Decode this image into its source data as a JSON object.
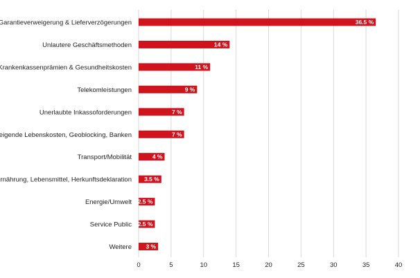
{
  "chart_data": {
    "type": "bar",
    "orientation": "horizontal",
    "categories": [
      "Garantieverweigerung & Lieferverzögerungen",
      "Unlautere Geschäftsmethoden",
      "Krankenkassenprämien & Gesundheitskosten",
      "Telekomleistungen",
      "Unerlaubte Inkassoforderungen",
      "Steigende Lebenskosten, Geoblocking, Banken",
      "Transport/Mobilität",
      "Ernährung, Lebensmittel, Herkunftsdeklaration",
      "Energie/Umwelt",
      "Service Public",
      "Weitere"
    ],
    "values": [
      36.5,
      14,
      11,
      9,
      7,
      7,
      4,
      3.5,
      2.5,
      2.5,
      3
    ],
    "data_labels": [
      "36.5 %",
      "14 %",
      "11 %",
      "9 %",
      "7 %",
      "7 %",
      "4 %",
      "3.5 %",
      "2.5 %",
      "2.5 %",
      "3 %"
    ],
    "xlim": [
      0,
      40
    ],
    "xticks": [
      0,
      5,
      10,
      15,
      20,
      25,
      30,
      35,
      40
    ],
    "xtick_labels": [
      "0",
      "5",
      "10",
      "15",
      "20",
      "25",
      "30",
      "35",
      "40"
    ],
    "grid": "vertical",
    "legend": "none",
    "bar_color": "#d0141e",
    "title": "",
    "xlabel": "",
    "ylabel": ""
  }
}
